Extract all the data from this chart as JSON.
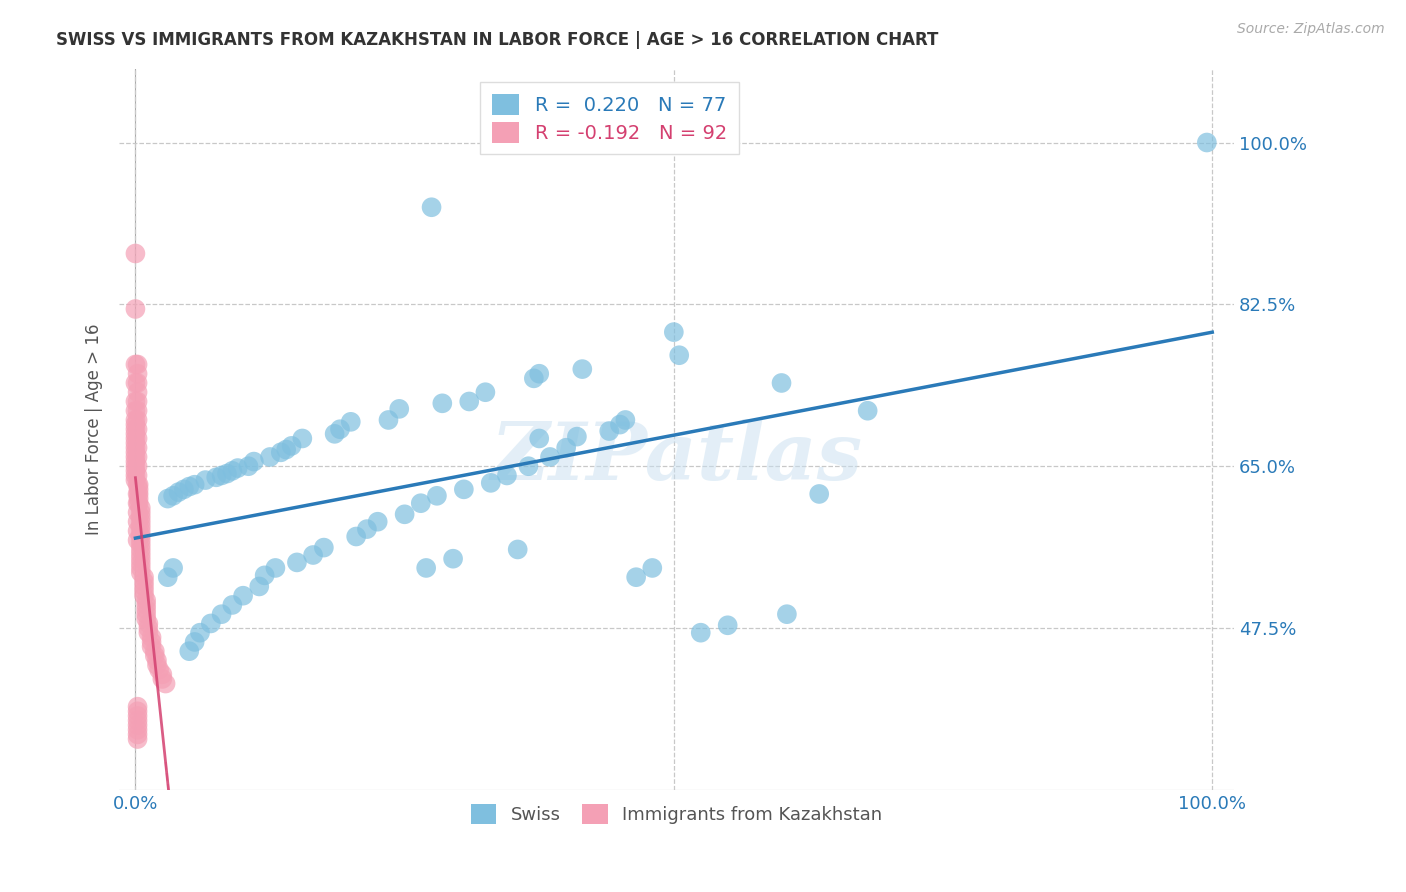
{
  "title": "SWISS VS IMMIGRANTS FROM KAZAKHSTAN IN LABOR FORCE | AGE > 16 CORRELATION CHART",
  "source": "Source: ZipAtlas.com",
  "ylabel": "In Labor Force | Age > 16",
  "r_swiss": 0.22,
  "n_swiss": 77,
  "r_kazakh": -0.192,
  "n_kazakh": 92,
  "y_tick_values": [
    0.475,
    0.65,
    0.825,
    1.0
  ],
  "y_tick_labels": [
    "47.5%",
    "65.0%",
    "82.5%",
    "100.0%"
  ],
  "xlim": [
    -1.5,
    102.0
  ],
  "ylim": [
    0.3,
    1.08
  ],
  "blue_color": "#7fbfdf",
  "blue_line_color": "#2a7ab8",
  "pink_color": "#f4a0b5",
  "pink_line_color": "#d44070",
  "watermark": "ZIPatlas",
  "legend_swiss_label": "Swiss",
  "legend_kazakh_label": "Immigrants from Kazakhstan",
  "swiss_x": [
    37.5,
    99.5,
    27.5,
    50.0,
    50.5,
    41.5,
    37.5,
    37.0,
    32.5,
    31.0,
    28.5,
    24.5,
    23.5,
    20.0,
    19.0,
    18.5,
    15.5,
    14.5,
    14.0,
    13.5,
    12.5,
    11.0,
    10.5,
    9.5,
    9.0,
    8.5,
    8.0,
    7.5,
    6.5,
    5.5,
    5.0,
    4.5,
    4.0,
    3.5,
    3.0,
    60.0,
    63.5,
    68.0,
    45.5,
    45.0,
    44.0,
    41.0,
    40.0,
    38.5,
    36.5,
    34.5,
    33.0,
    30.5,
    28.0,
    26.5,
    25.0,
    22.5,
    21.5,
    20.5,
    17.5,
    16.5,
    15.0,
    13.0,
    12.0,
    11.5,
    10.0,
    9.0,
    8.0,
    7.0,
    6.0,
    5.5,
    5.0,
    3.5,
    3.0,
    60.5,
    55.0,
    52.5,
    48.0,
    46.5,
    35.5,
    29.5,
    27.0
  ],
  "swiss_y": [
    0.68,
    1.0,
    0.93,
    0.795,
    0.77,
    0.755,
    0.75,
    0.745,
    0.73,
    0.72,
    0.718,
    0.712,
    0.7,
    0.698,
    0.69,
    0.685,
    0.68,
    0.672,
    0.668,
    0.665,
    0.66,
    0.655,
    0.65,
    0.648,
    0.645,
    0.642,
    0.64,
    0.638,
    0.635,
    0.63,
    0.628,
    0.625,
    0.622,
    0.618,
    0.615,
    0.74,
    0.62,
    0.71,
    0.7,
    0.695,
    0.688,
    0.682,
    0.67,
    0.66,
    0.65,
    0.64,
    0.632,
    0.625,
    0.618,
    0.61,
    0.598,
    0.59,
    0.582,
    0.574,
    0.562,
    0.554,
    0.546,
    0.54,
    0.532,
    0.52,
    0.51,
    0.5,
    0.49,
    0.48,
    0.47,
    0.46,
    0.45,
    0.54,
    0.53,
    0.49,
    0.478,
    0.47,
    0.54,
    0.53,
    0.56,
    0.55,
    0.54
  ],
  "kazakh_x": [
    0.0,
    0.0,
    0.0,
    0.0,
    0.0,
    0.0,
    0.0,
    0.0,
    0.0,
    0.0,
    0.0,
    0.0,
    0.0,
    0.0,
    0.0,
    0.0,
    0.0,
    0.0,
    0.0,
    0.0,
    0.3,
    0.3,
    0.3,
    0.3,
    0.3,
    0.5,
    0.5,
    0.5,
    0.5,
    0.5,
    0.5,
    0.5,
    0.5,
    0.5,
    0.5,
    0.5,
    0.5,
    0.5,
    0.5,
    0.5,
    0.8,
    0.8,
    0.8,
    0.8,
    0.8,
    1.0,
    1.0,
    1.0,
    1.0,
    1.0,
    1.2,
    1.2,
    1.2,
    1.5,
    1.5,
    1.5,
    1.8,
    1.8,
    2.0,
    2.0,
    2.2,
    2.5,
    2.5,
    2.8,
    0.2,
    0.2,
    0.2,
    0.2,
    0.2,
    0.2,
    0.2,
    0.2,
    0.2,
    0.2,
    0.2,
    0.2,
    0.2,
    0.2,
    0.2,
    0.2,
    0.2,
    0.2,
    0.2,
    0.2,
    0.2,
    0.2,
    0.2,
    0.2,
    0.2,
    0.2,
    0.2,
    0.2
  ],
  "kazakh_y": [
    0.88,
    0.82,
    0.76,
    0.74,
    0.72,
    0.71,
    0.7,
    0.695,
    0.69,
    0.685,
    0.68,
    0.675,
    0.67,
    0.665,
    0.66,
    0.655,
    0.65,
    0.645,
    0.64,
    0.635,
    0.63,
    0.625,
    0.62,
    0.615,
    0.61,
    0.605,
    0.6,
    0.595,
    0.59,
    0.585,
    0.58,
    0.575,
    0.57,
    0.565,
    0.56,
    0.555,
    0.55,
    0.545,
    0.54,
    0.535,
    0.53,
    0.525,
    0.52,
    0.515,
    0.51,
    0.505,
    0.5,
    0.495,
    0.49,
    0.485,
    0.48,
    0.475,
    0.47,
    0.465,
    0.46,
    0.455,
    0.45,
    0.445,
    0.44,
    0.435,
    0.43,
    0.425,
    0.42,
    0.415,
    0.76,
    0.75,
    0.74,
    0.73,
    0.72,
    0.71,
    0.7,
    0.69,
    0.68,
    0.67,
    0.66,
    0.65,
    0.64,
    0.63,
    0.62,
    0.61,
    0.6,
    0.59,
    0.58,
    0.57,
    0.39,
    0.385,
    0.38,
    0.375,
    0.37,
    0.365,
    0.36,
    0.355
  ]
}
